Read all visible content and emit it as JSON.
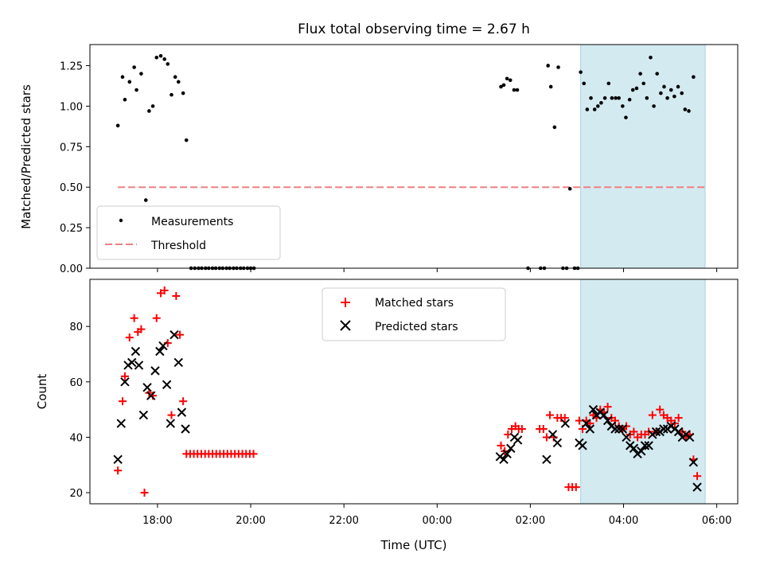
{
  "chart_data": [
    {
      "type": "scatter",
      "title": "Flux total observing time = 2.67 h",
      "ylabel": "Matched/Predicted stars",
      "xlabel": "",
      "xlim_hours": [
        16.55,
        30.45
      ],
      "ylim": [
        0,
        1.38
      ],
      "yticks": [
        0.0,
        0.25,
        0.5,
        0.75,
        1.0,
        1.25
      ],
      "ytick_labels": [
        "0.00",
        "0.25",
        "0.50",
        "0.75",
        "1.00",
        "1.25"
      ],
      "shaded_span_hours": [
        27.08,
        29.75
      ],
      "shade_color": "#d4eaf1",
      "legend_position": "lower-left",
      "series": [
        {
          "name": "Measurements",
          "marker": "dot",
          "color": "#000000",
          "points": [
            [
              17.15,
              0.88
            ],
            [
              17.25,
              1.18
            ],
            [
              17.3,
              1.04
            ],
            [
              17.4,
              1.15
            ],
            [
              17.5,
              1.24
            ],
            [
              17.55,
              1.1
            ],
            [
              17.65,
              1.2
            ],
            [
              17.75,
              0.42
            ],
            [
              17.82,
              0.97
            ],
            [
              17.9,
              1.0
            ],
            [
              17.98,
              1.3
            ],
            [
              18.07,
              1.31
            ],
            [
              18.15,
              1.29
            ],
            [
              18.22,
              1.26
            ],
            [
              18.3,
              1.07
            ],
            [
              18.38,
              1.18
            ],
            [
              18.45,
              1.15
            ],
            [
              18.55,
              1.08
            ],
            [
              18.62,
              0.79
            ],
            [
              18.72,
              0.0
            ],
            [
              18.8,
              0.0
            ],
            [
              18.88,
              0.0
            ],
            [
              18.95,
              0.0
            ],
            [
              19.03,
              0.0
            ],
            [
              19.1,
              0.0
            ],
            [
              19.18,
              0.0
            ],
            [
              19.25,
              0.0
            ],
            [
              19.33,
              0.0
            ],
            [
              19.4,
              0.0
            ],
            [
              19.48,
              0.0
            ],
            [
              19.55,
              0.0
            ],
            [
              19.63,
              0.0
            ],
            [
              19.7,
              0.0
            ],
            [
              19.78,
              0.0
            ],
            [
              19.85,
              0.0
            ],
            [
              19.93,
              0.0
            ],
            [
              20.0,
              0.0
            ],
            [
              20.07,
              0.0
            ],
            [
              25.37,
              1.12
            ],
            [
              25.43,
              1.13
            ],
            [
              25.5,
              1.17
            ],
            [
              25.57,
              1.16
            ],
            [
              25.65,
              1.1
            ],
            [
              25.72,
              1.1
            ],
            [
              25.95,
              0.0
            ],
            [
              26.22,
              0.0
            ],
            [
              26.3,
              0.0
            ],
            [
              26.38,
              1.25
            ],
            [
              26.44,
              1.12
            ],
            [
              26.52,
              0.87
            ],
            [
              26.6,
              1.24
            ],
            [
              26.7,
              0.0
            ],
            [
              26.78,
              0.0
            ],
            [
              26.85,
              0.49
            ],
            [
              26.95,
              0.0
            ],
            [
              27.02,
              0.0
            ],
            [
              27.08,
              1.21
            ],
            [
              27.15,
              1.14
            ],
            [
              27.22,
              0.98
            ],
            [
              27.3,
              1.05
            ],
            [
              27.38,
              0.98
            ],
            [
              27.45,
              1.0
            ],
            [
              27.52,
              1.02
            ],
            [
              27.6,
              1.05
            ],
            [
              27.68,
              1.14
            ],
            [
              27.75,
              1.05
            ],
            [
              27.83,
              1.05
            ],
            [
              27.9,
              1.05
            ],
            [
              27.98,
              1.0
            ],
            [
              28.05,
              0.93
            ],
            [
              28.13,
              1.04
            ],
            [
              28.2,
              1.1
            ],
            [
              28.28,
              1.11
            ],
            [
              28.36,
              1.2
            ],
            [
              28.43,
              1.14
            ],
            [
              28.5,
              1.05
            ],
            [
              28.58,
              1.3
            ],
            [
              28.65,
              1.0
            ],
            [
              28.72,
              1.2
            ],
            [
              28.8,
              1.08
            ],
            [
              28.87,
              1.12
            ],
            [
              28.94,
              1.05
            ],
            [
              29.02,
              1.1
            ],
            [
              29.09,
              1.06
            ],
            [
              29.17,
              1.12
            ],
            [
              29.25,
              1.08
            ],
            [
              29.32,
              0.98
            ],
            [
              29.4,
              0.97
            ],
            [
              29.5,
              1.18
            ]
          ]
        },
        {
          "name": "Threshold",
          "marker": "dashed-line",
          "color": "#f08080",
          "x_range_hours": [
            17.15,
            29.75
          ],
          "value": 0.5
        }
      ]
    },
    {
      "type": "scatter",
      "title": "",
      "ylabel": "Count",
      "xlabel": "Time (UTC)",
      "xlim_hours": [
        16.55,
        30.45
      ],
      "ylim": [
        16,
        97
      ],
      "yticks": [
        20,
        40,
        60,
        80
      ],
      "ytick_labels": [
        "20",
        "40",
        "60",
        "80"
      ],
      "xticks_hours": [
        18,
        20,
        22,
        24,
        26,
        28,
        30
      ],
      "xtick_labels": [
        "18:00",
        "20:00",
        "22:00",
        "00:00",
        "02:00",
        "04:00",
        "06:00"
      ],
      "shaded_span_hours": [
        27.08,
        29.75
      ],
      "shade_color": "#d4eaf1",
      "legend_position": "upper-center",
      "series": [
        {
          "name": "Matched stars",
          "marker": "plus",
          "color": "#ff0000",
          "points": [
            [
              17.15,
              28
            ],
            [
              17.25,
              53
            ],
            [
              17.3,
              62
            ],
            [
              17.4,
              76
            ],
            [
              17.5,
              83
            ],
            [
              17.58,
              78
            ],
            [
              17.65,
              79
            ],
            [
              17.72,
              20
            ],
            [
              17.82,
              56
            ],
            [
              17.9,
              55
            ],
            [
              17.98,
              83
            ],
            [
              18.07,
              92
            ],
            [
              18.15,
              93
            ],
            [
              18.22,
              74
            ],
            [
              18.3,
              48
            ],
            [
              18.4,
              91
            ],
            [
              18.48,
              77
            ],
            [
              18.55,
              53
            ],
            [
              18.62,
              34
            ],
            [
              18.7,
              34
            ],
            [
              18.78,
              34
            ],
            [
              18.86,
              34
            ],
            [
              18.94,
              34
            ],
            [
              19.02,
              34
            ],
            [
              19.1,
              34
            ],
            [
              19.18,
              34
            ],
            [
              19.26,
              34
            ],
            [
              19.34,
              34
            ],
            [
              19.42,
              34
            ],
            [
              19.5,
              34
            ],
            [
              19.58,
              34
            ],
            [
              19.66,
              34
            ],
            [
              19.74,
              34
            ],
            [
              19.82,
              34
            ],
            [
              19.9,
              34
            ],
            [
              19.98,
              34
            ],
            [
              20.06,
              34
            ],
            [
              25.37,
              37
            ],
            [
              25.45,
              35
            ],
            [
              25.52,
              41
            ],
            [
              25.6,
              43
            ],
            [
              25.68,
              44
            ],
            [
              25.75,
              43
            ],
            [
              25.82,
              43
            ],
            [
              26.2,
              43
            ],
            [
              26.28,
              43
            ],
            [
              26.35,
              40
            ],
            [
              26.42,
              48
            ],
            [
              26.5,
              40
            ],
            [
              26.58,
              47
            ],
            [
              26.66,
              47
            ],
            [
              26.74,
              47
            ],
            [
              26.82,
              22
            ],
            [
              26.9,
              22
            ],
            [
              26.98,
              22
            ],
            [
              27.05,
              46
            ],
            [
              27.12,
              43
            ],
            [
              27.2,
              46
            ],
            [
              27.28,
              45
            ],
            [
              27.35,
              48
            ],
            [
              27.42,
              47
            ],
            [
              27.5,
              50
            ],
            [
              27.58,
              49
            ],
            [
              27.66,
              51
            ],
            [
              27.74,
              47
            ],
            [
              27.82,
              46
            ],
            [
              27.9,
              44
            ],
            [
              27.98,
              43
            ],
            [
              28.06,
              44
            ],
            [
              28.14,
              41
            ],
            [
              28.22,
              42
            ],
            [
              28.3,
              40
            ],
            [
              28.38,
              41
            ],
            [
              28.46,
              41
            ],
            [
              28.54,
              42
            ],
            [
              28.62,
              48
            ],
            [
              28.7,
              42
            ],
            [
              28.78,
              50
            ],
            [
              28.86,
              48
            ],
            [
              28.94,
              47
            ],
            [
              29.02,
              46
            ],
            [
              29.1,
              45
            ],
            [
              29.18,
              47
            ],
            [
              29.26,
              42
            ],
            [
              29.34,
              40
            ],
            [
              29.42,
              41
            ],
            [
              29.5,
              32
            ],
            [
              29.58,
              26
            ]
          ]
        },
        {
          "name": "Predicted stars",
          "marker": "x",
          "color": "#000000",
          "points": [
            [
              17.15,
              32
            ],
            [
              17.22,
              45
            ],
            [
              17.3,
              60
            ],
            [
              17.37,
              66
            ],
            [
              17.45,
              67
            ],
            [
              17.53,
              71
            ],
            [
              17.6,
              66
            ],
            [
              17.7,
              48
            ],
            [
              17.78,
              58
            ],
            [
              17.86,
              55
            ],
            [
              17.95,
              64
            ],
            [
              18.05,
              71
            ],
            [
              18.12,
              73
            ],
            [
              18.2,
              59
            ],
            [
              18.28,
              45
            ],
            [
              18.36,
              77
            ],
            [
              18.45,
              67
            ],
            [
              18.52,
              49
            ],
            [
              18.6,
              43
            ],
            [
              25.35,
              33
            ],
            [
              25.43,
              32
            ],
            [
              25.5,
              34
            ],
            [
              25.58,
              36
            ],
            [
              25.66,
              40
            ],
            [
              25.73,
              39
            ],
            [
              26.35,
              32
            ],
            [
              26.48,
              41
            ],
            [
              26.58,
              38
            ],
            [
              26.75,
              45
            ],
            [
              27.05,
              38
            ],
            [
              27.12,
              37
            ],
            [
              27.2,
              45
            ],
            [
              27.28,
              43
            ],
            [
              27.35,
              50
            ],
            [
              27.42,
              48
            ],
            [
              27.5,
              49
            ],
            [
              27.58,
              48
            ],
            [
              27.66,
              46
            ],
            [
              27.74,
              44
            ],
            [
              27.82,
              43
            ],
            [
              27.9,
              43
            ],
            [
              27.98,
              43
            ],
            [
              28.06,
              40
            ],
            [
              28.14,
              37
            ],
            [
              28.22,
              36
            ],
            [
              28.3,
              34
            ],
            [
              28.38,
              35
            ],
            [
              28.46,
              37
            ],
            [
              28.54,
              37
            ],
            [
              28.62,
              41
            ],
            [
              28.7,
              42
            ],
            [
              28.78,
              42
            ],
            [
              28.86,
              43
            ],
            [
              28.94,
              43
            ],
            [
              29.02,
              44
            ],
            [
              29.1,
              43
            ],
            [
              29.18,
              42
            ],
            [
              29.26,
              40
            ],
            [
              29.34,
              41
            ],
            [
              29.42,
              40
            ],
            [
              29.5,
              31
            ],
            [
              29.58,
              22
            ]
          ]
        }
      ]
    }
  ]
}
